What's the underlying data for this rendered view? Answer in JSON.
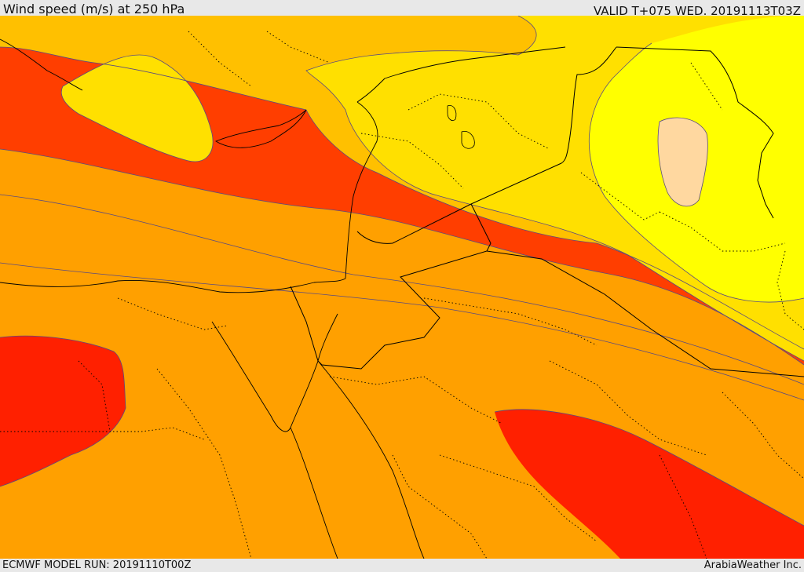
{
  "header": {
    "title": "Wind speed (m/s) at 250 hPa",
    "valid": "VALID T+075 WED. 20191113T03Z"
  },
  "footer": {
    "model_run": "ECMWF MODEL RUN: 20191110T00Z",
    "credit": "ArabiaWeather Inc."
  },
  "colors": {
    "bands": [
      "#ffc8a0",
      "#ffff00",
      "#ffe000",
      "#ffc000",
      "#ffa000",
      "#ff7e00",
      "#ff5e00",
      "#ff3e00",
      "#ff2000"
    ],
    "contour": "#5a4a80",
    "border": "#000000"
  }
}
